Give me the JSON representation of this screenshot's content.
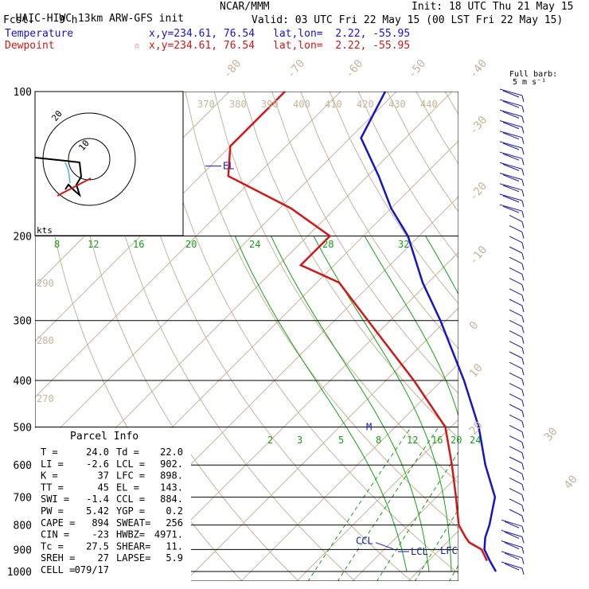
{
  "header": {
    "model": "HAIC-HIWC 13km ARW-GFS init",
    "org": "NCAR/MMM",
    "init": "Init: 18 UTC Thu 21 May 15",
    "fcst_label": "Fcst:",
    "fcst_value": "9 h",
    "valid": "Valid: 03 UTC Fri 22 May 15 (00 LST Fri 22 May 15)",
    "temp_label": "Temperature",
    "temp_xy": "x,y=234.61, 76.54",
    "temp_latlon": "lat,lon=  2.22, -55.95",
    "dew_label": "Dewpoint",
    "dew_marker": "☆",
    "dew_xy": "x,y=234.61, 76.54",
    "dew_latlon": "lat,lon=  2.22, -55.95"
  },
  "colors": {
    "temperature": "#1515c8",
    "dewpoint": "#d01818",
    "dry_adiabat": "#c8b49a",
    "isotherm": "#c8b49a",
    "moist_adiabat": "#18a018",
    "mixing_ratio": "#18a018",
    "wind_barb": "#1a1a9a"
  },
  "chart_data": {
    "type": "skew-t",
    "pressure_levels": [
      "100",
      "200",
      "300",
      "400",
      "500",
      "600",
      "700",
      "800",
      "900",
      "1000"
    ],
    "isotherm_labels": [
      "-80",
      "-70",
      "-60",
      "-50",
      "-40",
      "-30",
      "-20",
      "-10",
      "0",
      "10",
      "20",
      "30",
      "40"
    ],
    "theta_labels_top": [
      "370",
      "380",
      "390",
      "400",
      "410",
      "420",
      "430",
      "440"
    ],
    "theta_labels_side": [
      "290",
      "280",
      "270"
    ],
    "theta_e_labels": [
      "8",
      "12",
      "16",
      "20",
      "24",
      "28",
      "32"
    ],
    "mixing_ratio_labels": [
      "2",
      "3",
      "5",
      "8",
      "12",
      "16",
      "20",
      "24"
    ],
    "temperature_profile": [
      {
        "p": 1000,
        "t": 24.0
      },
      {
        "p": 950,
        "t": 21.0
      },
      {
        "p": 900,
        "t": 18.0
      },
      {
        "p": 850,
        "t": 16.0
      },
      {
        "p": 800,
        "t": 14.5
      },
      {
        "p": 700,
        "t": 10.5
      },
      {
        "p": 600,
        "t": 3.0
      },
      {
        "p": 500,
        "t": -5.0
      },
      {
        "p": 400,
        "t": -16.0
      },
      {
        "p": 300,
        "t": -31.0
      },
      {
        "p": 250,
        "t": -41.0
      },
      {
        "p": 200,
        "t": -52.0
      },
      {
        "p": 175,
        "t": -60.0
      },
      {
        "p": 150,
        "t": -68.0
      },
      {
        "p": 125,
        "t": -78.0
      },
      {
        "p": 100,
        "t": -82.0
      }
    ],
    "dewpoint_profile": [
      {
        "p": 950,
        "t": 20.5
      },
      {
        "p": 900,
        "t": 17.5
      },
      {
        "p": 870,
        "t": 14.0
      },
      {
        "p": 850,
        "t": 12.5
      },
      {
        "p": 800,
        "t": 9.0
      },
      {
        "p": 700,
        "t": 3.5
      },
      {
        "p": 600,
        "t": -3.0
      },
      {
        "p": 500,
        "t": -11.0
      },
      {
        "p": 400,
        "t": -25.0
      },
      {
        "p": 300,
        "t": -44.0
      },
      {
        "p": 250,
        "t": -56.0
      },
      {
        "p": 230,
        "t": -66.0
      },
      {
        "p": 200,
        "t": -66.0
      },
      {
        "p": 175,
        "t": -78.0
      },
      {
        "p": 150,
        "t": -95.0
      },
      {
        "p": 130,
        "t": -100.0
      },
      {
        "p": 100,
        "t": -100.0
      }
    ],
    "annotations": [
      {
        "text": "EL",
        "p": 143
      },
      {
        "text": "CCL",
        "p": 884
      },
      {
        "text": "LCL",
        "p": 902
      },
      {
        "text": "LFC",
        "p": 898
      },
      {
        "text": "M",
        "p": 500
      }
    ],
    "wind_barbs_label": "Full barb:",
    "wind_barbs_unit": "5 m s⁻¹",
    "hodograph": {
      "ring_labels": [
        "10",
        "20"
      ],
      "unit": "kts"
    }
  },
  "parcel_info": {
    "title": "Parcel Info",
    "rows": [
      {
        "k1": "T    =",
        "v1": "24.0",
        "k2": "Td =",
        "v2": "22.0"
      },
      {
        "k1": "LI   =",
        "v1": "-2.6",
        "k2": "LCL =",
        "v2": "902."
      },
      {
        "k1": "K    =",
        "v1": "37",
        "k2": "LFC =",
        "v2": "898."
      },
      {
        "k1": "TT   =",
        "v1": "45",
        "k2": "EL  =",
        "v2": "143."
      },
      {
        "k1": "SWI  =",
        "v1": "-1.4",
        "k2": "CCL =",
        "v2": "884."
      },
      {
        "k1": "PW   =",
        "v1": "5.42",
        "k2": "YGP =",
        "v2": "0.2"
      },
      {
        "k1": "CAPE =",
        "v1": "894",
        "k2": "SWEAT=",
        "v2": "256"
      },
      {
        "k1": "CIN  =",
        "v1": "-23",
        "k2": "HWBZ=",
        "v2": "4971."
      },
      {
        "k1": "Tc   =",
        "v1": "27.5",
        "k2": "SHEAR=",
        "v2": "11."
      },
      {
        "k1": "SREH =",
        "v1": "27",
        "k2": "LAPSE=",
        "v2": "5.9"
      },
      {
        "k1": "CELL =",
        "v1": "079/17",
        "k2": "",
        "v2": ""
      }
    ]
  }
}
